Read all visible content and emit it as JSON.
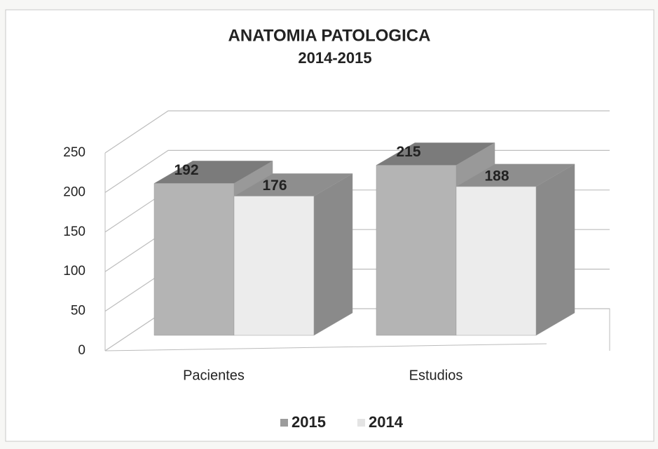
{
  "chart_data": {
    "type": "bar3d",
    "title": "ANATOMIA PATOLOGICA",
    "subtitle": "2014-2015",
    "categories": [
      "Pacientes",
      "Estudios"
    ],
    "series": [
      {
        "name": "2015",
        "color": "#b4b4b4",
        "values": [
          192,
          215
        ]
      },
      {
        "name": "2014",
        "color": "#ececec",
        "values": [
          176,
          188
        ]
      }
    ],
    "ylim": [
      0,
      250
    ],
    "yticks": [
      0,
      50,
      100,
      150,
      200,
      250
    ],
    "grid": true,
    "legend": "bottom"
  }
}
